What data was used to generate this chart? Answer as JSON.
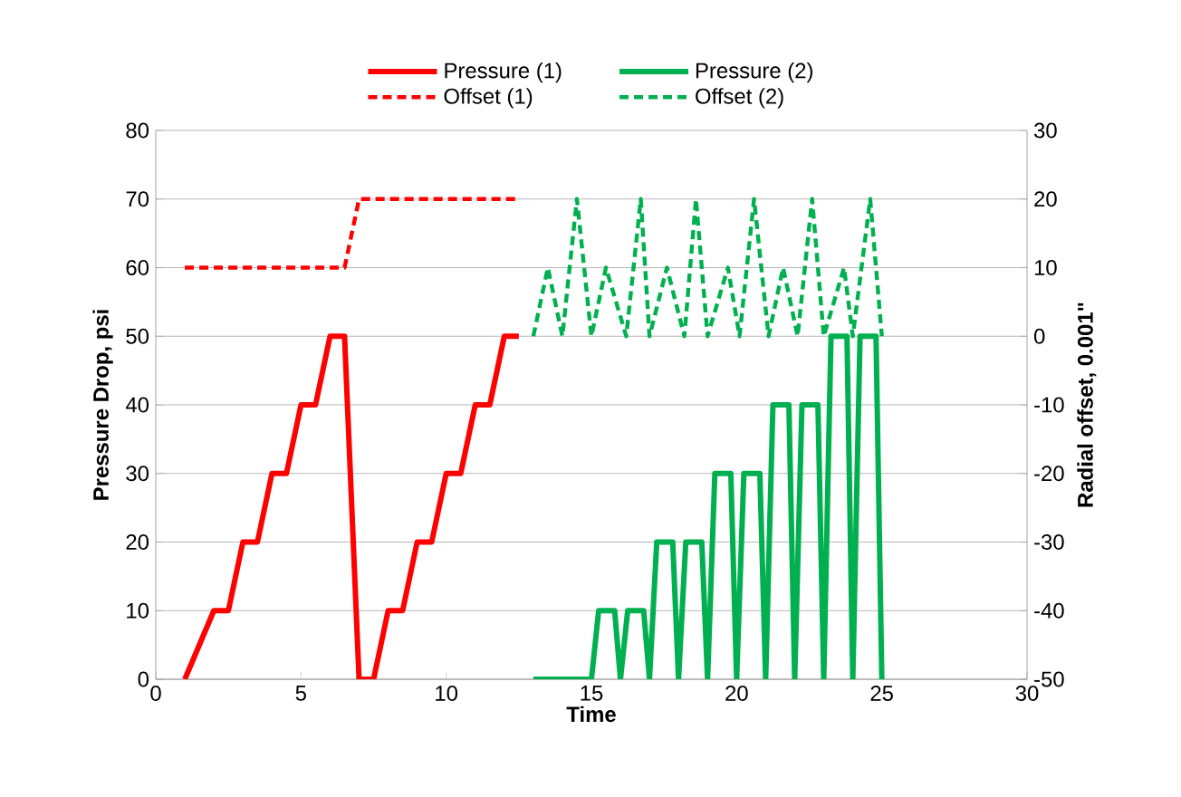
{
  "chart_data": {
    "type": "line",
    "xlabel": "Time",
    "ylabel": "Pressure Drop, psi",
    "y2label": "Radial offset, 0.001\"",
    "xlim": [
      0,
      30
    ],
    "xticks": [
      0,
      5,
      10,
      15,
      20,
      25,
      30
    ],
    "ylim": [
      0,
      80
    ],
    "yticks": [
      0,
      10,
      20,
      30,
      40,
      50,
      60,
      70,
      80
    ],
    "y2lim": [
      -50,
      30
    ],
    "y2ticks": [
      -50,
      -40,
      -30,
      -20,
      -10,
      0,
      10,
      20,
      30
    ],
    "grid": "y",
    "legend": "top",
    "marker": "none",
    "series": [
      {
        "name": "Pressure (1)",
        "color": "#ff0000",
        "line_style": "solid",
        "x": [
          1,
          2,
          2.5,
          3,
          3.5,
          4,
          4.5,
          5,
          5.5,
          6,
          6.5,
          7,
          7.5,
          8,
          8.5,
          9,
          9.5,
          10,
          10.5,
          11,
          11.5,
          12,
          12.5
        ],
        "values": [
          0,
          10,
          10,
          20,
          20,
          30,
          30,
          40,
          40,
          50,
          50,
          0,
          0,
          10,
          10,
          20,
          20,
          30,
          30,
          40,
          40,
          50,
          50
        ]
      },
      {
        "name": "Offset (1)",
        "color": "#ff0000",
        "line_style": "dashed",
        "axis": "y2",
        "x": [
          1,
          6.5,
          7,
          12.5
        ],
        "values": [
          10,
          10,
          20,
          20
        ]
      },
      {
        "name": "Pressure (2)",
        "color": "#00b050",
        "line_style": "solid",
        "x": [
          13,
          15,
          15.25,
          15.8,
          16,
          16.25,
          16.8,
          17,
          17.25,
          17.8,
          18,
          18.25,
          18.8,
          19,
          19.25,
          19.8,
          20,
          20.25,
          20.8,
          21,
          21.25,
          21.8,
          22,
          22.25,
          22.8,
          23,
          23.25,
          23.8,
          24,
          24.25,
          24.8,
          25
        ],
        "values": [
          0,
          0,
          10,
          10,
          0,
          10,
          10,
          0,
          20,
          20,
          0,
          20,
          20,
          0,
          30,
          30,
          0,
          30,
          30,
          0,
          40,
          40,
          0,
          40,
          40,
          0,
          50,
          50,
          0,
          50,
          50,
          0
        ]
      },
      {
        "name": "Offset (2)",
        "color": "#00b050",
        "line_style": "dashed",
        "axis": "y2",
        "x": [
          13,
          13.5,
          14,
          14.5,
          15,
          15.5,
          16.2,
          16.7,
          17,
          17.6,
          18.2,
          18.6,
          19,
          19.7,
          20.1,
          20.6,
          21.1,
          21.6,
          22.1,
          22.6,
          23,
          23.7,
          24,
          24.6,
          25
        ],
        "values": [
          0,
          10,
          0,
          20,
          0,
          10,
          0,
          20,
          0,
          10,
          0,
          20,
          0,
          10,
          0,
          20,
          0,
          10,
          0,
          20,
          0,
          10,
          0,
          20,
          0
        ]
      }
    ]
  }
}
